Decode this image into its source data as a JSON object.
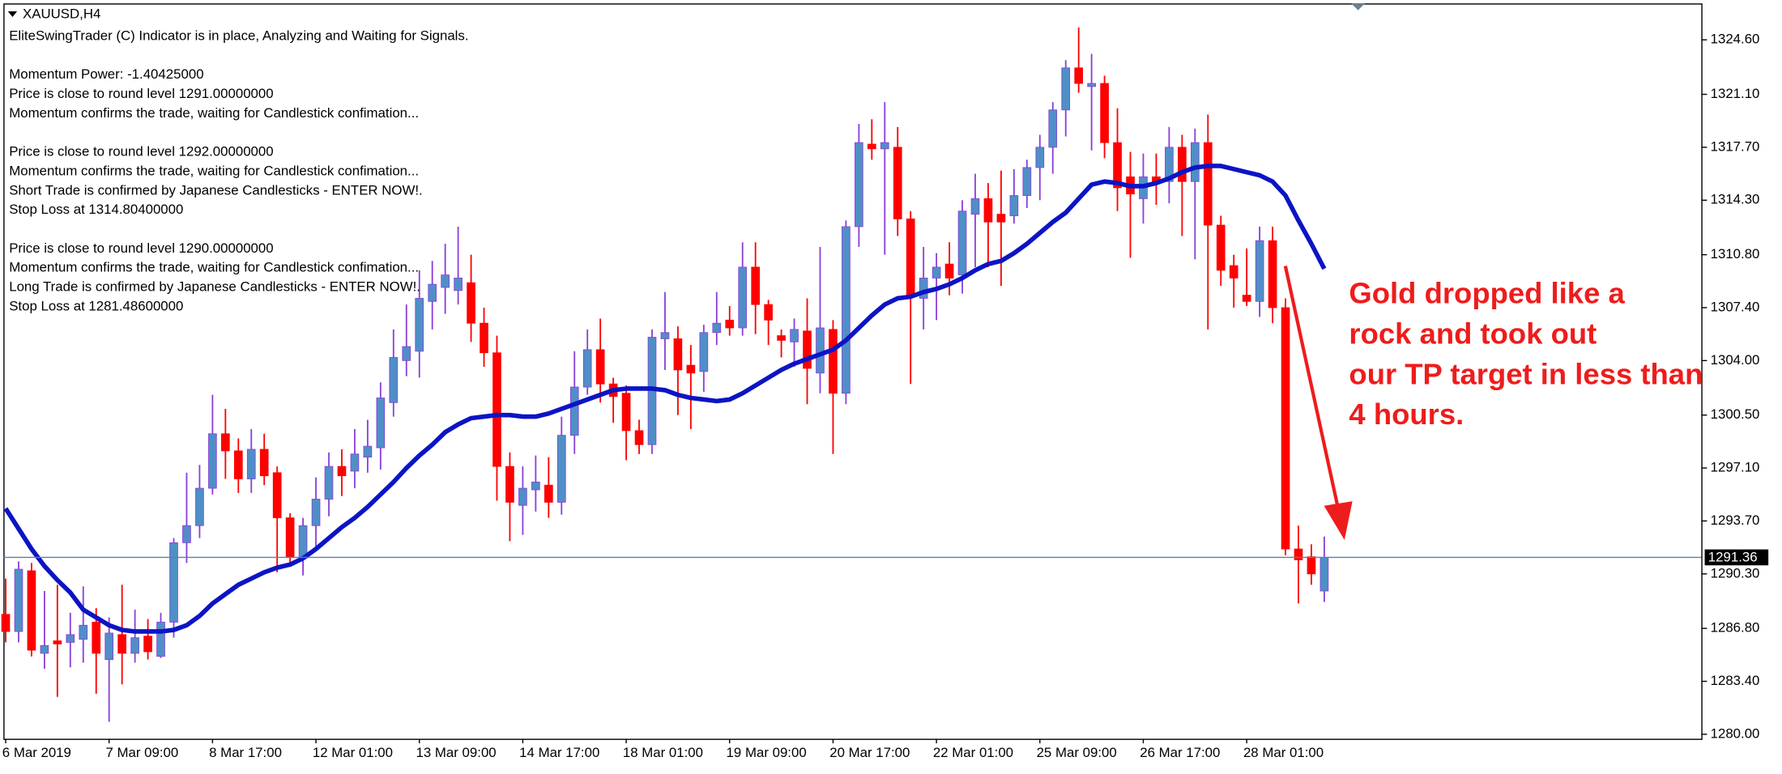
{
  "chart_data": {
    "type": "candlestick",
    "title": "XAUUSD,H4",
    "indicator_lines": [
      [
        "EliteSwingTrader (C) Indicator is in place, Analyzing and Waiting for Signals."
      ],
      [
        "Momentum Power: -1.40425000",
        "Price is close to round level 1291.00000000",
        "Momentum confirms the trade, waiting for Candlestick confimation..."
      ],
      [
        "Price is close to round level 1292.00000000",
        "Momentum confirms the trade, waiting for Candlestick confimation...",
        "Short Trade is confirmed by Japanese Candlesticks - ENTER NOW!.",
        "Stop Loss at 1314.80400000"
      ],
      [
        "Price is close to round level 1290.00000000",
        "Momentum confirms the trade, waiting for Candlestick confimation...",
        "Long Trade is confirmed by Japanese Candlesticks - ENTER NOW!.",
        "Stop Loss at 1281.48600000"
      ]
    ],
    "annotation": [
      "Gold dropped like a",
      "rock and took out",
      "our TP target in less than",
      "4 hours."
    ],
    "categories": [
      "6 Mar 2019",
      null,
      null,
      null,
      null,
      null,
      null,
      null,
      "7 Mar 09:00",
      null,
      null,
      null,
      null,
      null,
      null,
      null,
      "8 Mar 17:00",
      null,
      null,
      null,
      null,
      null,
      null,
      null,
      "12 Mar 01:00",
      null,
      null,
      null,
      null,
      null,
      null,
      null,
      "13 Mar 09:00",
      null,
      null,
      null,
      null,
      null,
      null,
      null,
      "14 Mar 17:00",
      null,
      null,
      null,
      null,
      null,
      null,
      null,
      "18 Mar 01:00",
      null,
      null,
      null,
      null,
      null,
      null,
      null,
      "19 Mar 09:00",
      null,
      null,
      null,
      null,
      null,
      null,
      null,
      "20 Mar 17:00",
      null,
      null,
      null,
      null,
      null,
      null,
      null,
      "22 Mar 01:00",
      null,
      null,
      null,
      null,
      null,
      null,
      null,
      "25 Mar 09:00",
      null,
      null,
      null,
      null,
      null,
      null,
      null,
      "26 Mar 17:00",
      null,
      null,
      null,
      null,
      null,
      null,
      null,
      "28 Mar 01:00",
      null,
      null,
      null,
      null,
      null,
      null
    ],
    "open": [
      1287.7,
      1286.6,
      1290.5,
      1285.2,
      1286.0,
      1285.9,
      1286.1,
      1287.2,
      1284.8,
      1286.4,
      1285.2,
      1286.3,
      1285.0,
      1287.2,
      1292.3,
      1293.4,
      1295.8,
      1299.3,
      1298.2,
      1296.4,
      1298.3,
      1296.8,
      1293.9,
      1291.3,
      1293.4,
      1295.1,
      1297.2,
      1296.9,
      1297.8,
      1298.4,
      1301.3,
      1304.0,
      1304.6,
      1307.8,
      1308.7,
      1308.5,
      1309.0,
      1306.4,
      1304.5,
      1297.2,
      1294.7,
      1295.7,
      1296.0,
      1294.9,
      1299.2,
      1302.3,
      1304.7,
      1302.5,
      1301.9,
      1299.5,
      1298.6,
      1305.4,
      1305.4,
      1303.7,
      1303.3,
      1305.8,
      1306.6,
      1306.1,
      1310.0,
      1307.6,
      1305.6,
      1305.2,
      1305.9,
      1303.2,
      1306.0,
      1301.9,
      1312.6,
      1317.9,
      1317.6,
      1317.7,
      1313.1,
      1308.0,
      1309.3,
      1310.2,
      1309.5,
      1313.4,
      1314.4,
      1313.4,
      1313.3,
      1314.6,
      1316.4,
      1317.7,
      1320.1,
      1322.8,
      1321.6,
      1321.8,
      1318.0,
      1315.8,
      1314.4,
      1315.8,
      1315.5,
      1317.7,
      1315.5,
      1318.0,
      1312.7,
      1310.1,
      1308.2,
      1307.8,
      1311.7,
      1307.4,
      1291.9,
      1291.4,
      1289.2
    ],
    "high": [
      1290.0,
      1291.1,
      1291.0,
      1289.2,
      1289.6,
      1287.8,
      1289.5,
      1288.1,
      1287.5,
      1289.6,
      1288.0,
      1287.4,
      1287.8,
      1292.6,
      1296.8,
      1297.3,
      1301.8,
      1300.9,
      1299.0,
      1299.6,
      1299.3,
      1297.2,
      1294.2,
      1293.9,
      1296.5,
      1298.1,
      1298.3,
      1299.6,
      1300.2,
      1302.6,
      1306.0,
      1307.6,
      1309.8,
      1310.4,
      1311.5,
      1312.6,
      1310.8,
      1307.4,
      1305.6,
      1298.1,
      1297.2,
      1297.9,
      1297.8,
      1300.4,
      1304.6,
      1306.0,
      1306.7,
      1302.9,
      1302.4,
      1300.2,
      1306.0,
      1308.4,
      1306.2,
      1305.0,
      1306.3,
      1308.4,
      1307.5,
      1311.6,
      1311.6,
      1307.9,
      1306.0,
      1306.7,
      1308.0,
      1311.3,
      1306.6,
      1313.0,
      1319.2,
      1319.5,
      1320.6,
      1319.0,
      1313.6,
      1311.3,
      1310.9,
      1311.6,
      1314.3,
      1316.0,
      1315.4,
      1316.2,
      1316.3,
      1316.9,
      1318.5,
      1320.6,
      1323.3,
      1325.4,
      1323.7,
      1322.3,
      1320.2,
      1317.4,
      1317.3,
      1317.3,
      1319.0,
      1318.5,
      1318.9,
      1319.8,
      1313.3,
      1310.8,
      1311.2,
      1312.6,
      1312.6,
      1308.0,
      1293.4,
      1292.2,
      1292.7
    ],
    "low": [
      1285.9,
      1285.9,
      1285.0,
      1284.2,
      1282.4,
      1284.3,
      1284.6,
      1282.6,
      1280.8,
      1283.2,
      1284.6,
      1284.8,
      1284.9,
      1286.2,
      1291.0,
      1292.6,
      1295.4,
      1296.4,
      1295.5,
      1295.5,
      1296.0,
      1290.4,
      1291.0,
      1290.2,
      1292.0,
      1294.0,
      1295.3,
      1295.8,
      1296.8,
      1297.0,
      1300.4,
      1303.0,
      1302.9,
      1306.0,
      1307.0,
      1307.6,
      1305.2,
      1303.6,
      1295.0,
      1292.4,
      1292.8,
      1294.3,
      1293.9,
      1294.1,
      1298.0,
      1301.8,
      1301.3,
      1300.0,
      1297.6,
      1298.0,
      1298.0,
      1303.4,
      1300.5,
      1299.6,
      1302.0,
      1305.0,
      1305.6,
      1305.6,
      1305.7,
      1305.0,
      1304.2,
      1303.6,
      1301.2,
      1301.9,
      1298.0,
      1301.2,
      1311.3,
      1316.9,
      1310.8,
      1312.0,
      1302.5,
      1306.0,
      1306.6,
      1308.2,
      1308.3,
      1310.0,
      1310.0,
      1308.8,
      1312.8,
      1313.8,
      1314.3,
      1316.0,
      1318.4,
      1321.2,
      1317.5,
      1317.0,
      1313.6,
      1310.6,
      1312.8,
      1314.0,
      1314.1,
      1312.0,
      1310.5,
      1306.0,
      1308.8,
      1307.4,
      1307.5,
      1306.8,
      1306.4,
      1291.5,
      1288.4,
      1289.6,
      1288.5
    ],
    "close": [
      1286.6,
      1290.6,
      1285.4,
      1285.7,
      1285.8,
      1286.4,
      1287.0,
      1285.2,
      1286.5,
      1285.2,
      1286.2,
      1285.3,
      1287.2,
      1292.3,
      1293.4,
      1295.8,
      1299.3,
      1298.2,
      1296.4,
      1298.3,
      1296.6,
      1293.9,
      1291.4,
      1293.4,
      1295.1,
      1297.2,
      1296.6,
      1298.0,
      1298.5,
      1301.6,
      1304.2,
      1304.9,
      1308.0,
      1308.9,
      1309.5,
      1309.3,
      1306.4,
      1304.5,
      1297.2,
      1294.9,
      1295.8,
      1296.2,
      1294.9,
      1299.2,
      1302.3,
      1304.7,
      1302.5,
      1301.7,
      1299.5,
      1298.6,
      1305.5,
      1305.8,
      1303.4,
      1303.2,
      1305.8,
      1306.4,
      1306.1,
      1310.0,
      1307.6,
      1306.6,
      1305.3,
      1306.0,
      1303.5,
      1306.1,
      1301.9,
      1312.6,
      1318.0,
      1317.6,
      1318.0,
      1313.1,
      1308.2,
      1309.3,
      1310.0,
      1309.3,
      1313.6,
      1314.4,
      1312.9,
      1312.9,
      1314.6,
      1316.4,
      1317.7,
      1320.1,
      1322.8,
      1321.8,
      1321.8,
      1318.0,
      1315.1,
      1314.7,
      1315.8,
      1315.5,
      1317.7,
      1315.5,
      1318.0,
      1312.7,
      1309.8,
      1309.3,
      1307.8,
      1311.7,
      1307.4,
      1291.9,
      1291.2,
      1290.3,
      1291.36
    ],
    "ma": [
      1294.5,
      1293.2,
      1291.9,
      1290.8,
      1289.9,
      1289.1,
      1288.0,
      1287.5,
      1287.0,
      1286.7,
      1286.6,
      1286.6,
      1286.6,
      1286.7,
      1287.0,
      1287.6,
      1288.4,
      1289.0,
      1289.6,
      1290.0,
      1290.4,
      1290.7,
      1290.9,
      1291.3,
      1291.9,
      1292.6,
      1293.3,
      1293.9,
      1294.6,
      1295.4,
      1296.2,
      1297.1,
      1297.9,
      1298.6,
      1299.4,
      1299.9,
      1300.3,
      1300.4,
      1300.5,
      1300.5,
      1300.4,
      1300.4,
      1300.6,
      1300.9,
      1301.2,
      1301.5,
      1301.8,
      1302.1,
      1302.2,
      1302.2,
      1302.2,
      1302.1,
      1301.8,
      1301.6,
      1301.5,
      1301.4,
      1301.5,
      1301.9,
      1302.4,
      1302.9,
      1303.4,
      1303.8,
      1304.1,
      1304.4,
      1304.7,
      1305.3,
      1306.1,
      1306.9,
      1307.6,
      1308.0,
      1308.1,
      1308.4,
      1308.6,
      1308.9,
      1309.3,
      1309.8,
      1310.2,
      1310.4,
      1310.9,
      1311.5,
      1312.2,
      1312.9,
      1313.5,
      1314.4,
      1315.3,
      1315.5,
      1315.4,
      1315.2,
      1315.2,
      1315.4,
      1315.7,
      1316.1,
      1316.4,
      1316.5,
      1316.5,
      1316.3,
      1316.1,
      1315.9,
      1315.5,
      1314.6,
      1313.0,
      1311.5,
      1309.9
    ],
    "current_price": 1291.36,
    "ylim": [
      1279.71,
      1326.94
    ],
    "yticks": [
      {
        "value": 1280.0,
        "label": "1280.00"
      },
      {
        "value": 1283.4,
        "label": "1283.40"
      },
      {
        "value": 1286.8,
        "label": "1286.80"
      },
      {
        "value": 1290.3,
        "label": "1290.30"
      },
      {
        "value": 1293.7,
        "label": "1293.70"
      },
      {
        "value": 1297.1,
        "label": "1297.10"
      },
      {
        "value": 1300.5,
        "label": "1300.50"
      },
      {
        "value": 1304.0,
        "label": "1304.00"
      },
      {
        "value": 1307.4,
        "label": "1307.40"
      },
      {
        "value": 1310.8,
        "label": "1310.80"
      },
      {
        "value": 1314.3,
        "label": "1314.30"
      },
      {
        "value": 1317.7,
        "label": "1317.70"
      },
      {
        "value": 1321.1,
        "label": "1321.10"
      },
      {
        "value": 1324.6,
        "label": "1324.60"
      }
    ],
    "up_color": "#4f8fc7",
    "up_wick_color": "#8b3fd9",
    "down_color": "#ff0000",
    "ma_color": "#0c14c4",
    "price_line_color": "#5d7fa0",
    "annotation_color": "#ee1c1c"
  }
}
